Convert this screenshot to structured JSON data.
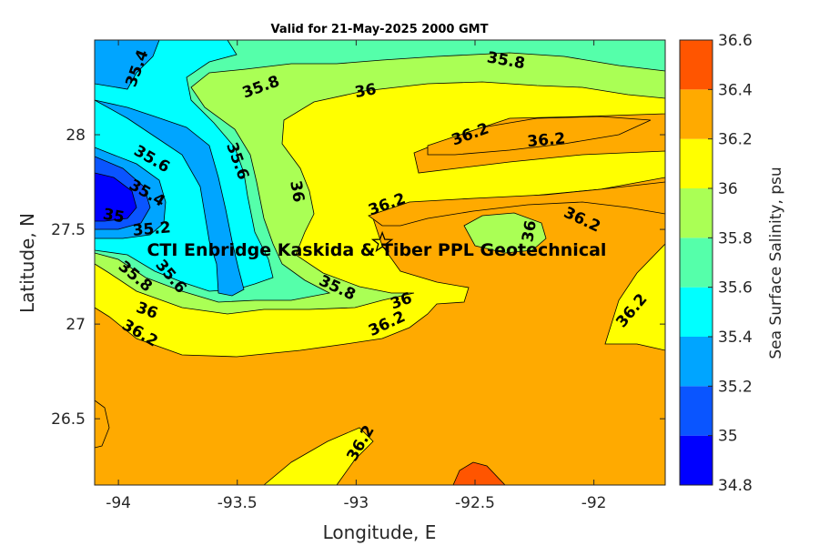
{
  "chart_data": {
    "type": "contour",
    "title": "Valid for 21-May-2025 2000 GMT",
    "xlabel": "Longitude, E",
    "ylabel": "Latitude, N",
    "xlim": [
      -94.1,
      -91.7
    ],
    "ylim": [
      26.15,
      28.5
    ],
    "xticks": [
      -94,
      -93.5,
      -93,
      -92.5,
      -92
    ],
    "xtick_labels": [
      "-94",
      "-93.5",
      "-93",
      "-92.5",
      "-92"
    ],
    "yticks": [
      26.5,
      27,
      27.5,
      28
    ],
    "ytick_labels": [
      "26.5",
      "27",
      "27.5",
      "28"
    ],
    "colorbar": {
      "label": "Sea Surface Salinity, psu",
      "levels": [
        34.8,
        35,
        35.2,
        35.4,
        35.6,
        35.8,
        36,
        36.2,
        36.4,
        36.6
      ],
      "tick_labels": [
        "34.8",
        "35",
        "35.2",
        "35.4",
        "35.6",
        "35.8",
        "36",
        "36.2",
        "36.4",
        "36.6"
      ],
      "colors": [
        "#0000ff",
        "#0a55ff",
        "#00a5ff",
        "#00ffff",
        "#55ffaa",
        "#aaff55",
        "#ffff00",
        "#ffaa00",
        "#ff5500"
      ]
    },
    "contour_labels": [
      {
        "text": "35.4",
        "lon": -93.92,
        "lat": 28.35
      },
      {
        "text": "35.8",
        "lon": -93.4,
        "lat": 28.25
      },
      {
        "text": "36",
        "lon": -92.96,
        "lat": 28.23
      },
      {
        "text": "35.8",
        "lon": -92.37,
        "lat": 28.39
      },
      {
        "text": "36.2",
        "lon": -92.52,
        "lat": 28.0
      },
      {
        "text": "36.2",
        "lon": -92.2,
        "lat": 27.97
      },
      {
        "text": "35.6",
        "lon": -93.86,
        "lat": 27.87
      },
      {
        "text": "35.6",
        "lon": -93.5,
        "lat": 27.86
      },
      {
        "text": "35.4",
        "lon": -93.88,
        "lat": 27.69
      },
      {
        "text": "36",
        "lon": -93.25,
        "lat": 27.7
      },
      {
        "text": "35",
        "lon": -94.02,
        "lat": 27.57
      },
      {
        "text": "35.2",
        "lon": -93.86,
        "lat": 27.5
      },
      {
        "text": "36.2",
        "lon": -92.87,
        "lat": 27.63
      },
      {
        "text": "36.2",
        "lon": -92.05,
        "lat": 27.55
      },
      {
        "text": "36",
        "lon": -92.27,
        "lat": 27.49
      },
      {
        "text": "35.8",
        "lon": -93.93,
        "lat": 27.25
      },
      {
        "text": "35.6",
        "lon": -93.78,
        "lat": 27.25
      },
      {
        "text": "36",
        "lon": -93.88,
        "lat": 27.07
      },
      {
        "text": "35.8",
        "lon": -93.08,
        "lat": 27.19
      },
      {
        "text": "36",
        "lon": -92.81,
        "lat": 27.12
      },
      {
        "text": "36.2",
        "lon": -92.87,
        "lat": 27.0
      },
      {
        "text": "36.2",
        "lon": -93.91,
        "lat": 26.95
      },
      {
        "text": "36.2",
        "lon": -91.84,
        "lat": 27.07
      },
      {
        "text": "36.2",
        "lon": -92.98,
        "lat": 26.37
      }
    ],
    "annotation": {
      "text": "CTI Enbridge  Kaskida & Tiber PPL Geotechnical",
      "lon": -93.88,
      "lat": 27.36
    },
    "marker": {
      "symbol": "star",
      "lon": -92.89,
      "lat": 27.43
    }
  }
}
